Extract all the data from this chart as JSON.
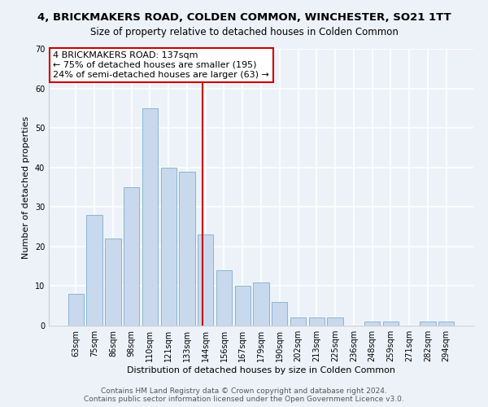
{
  "title": "4, BRICKMAKERS ROAD, COLDEN COMMON, WINCHESTER, SO21 1TT",
  "subtitle": "Size of property relative to detached houses in Colden Common",
  "xlabel": "Distribution of detached houses by size in Colden Common",
  "ylabel": "Number of detached properties",
  "categories": [
    "63sqm",
    "75sqm",
    "86sqm",
    "98sqm",
    "110sqm",
    "121sqm",
    "133sqm",
    "144sqm",
    "156sqm",
    "167sqm",
    "179sqm",
    "190sqm",
    "202sqm",
    "213sqm",
    "225sqm",
    "236sqm",
    "248sqm",
    "259sqm",
    "271sqm",
    "282sqm",
    "294sqm"
  ],
  "values": [
    8,
    28,
    22,
    35,
    55,
    40,
    39,
    23,
    14,
    10,
    11,
    6,
    2,
    2,
    2,
    0,
    1,
    1,
    0,
    1,
    1
  ],
  "bar_color": "#c8d9ed",
  "bar_edge_color": "#8ab4d4",
  "annotation_line0": "4 BRICKMAKERS ROAD: 137sqm",
  "annotation_line1": "← 75% of detached houses are smaller (195)",
  "annotation_line2": "24% of semi-detached houses are larger (63) →",
  "annotation_box_color": "#ffffff",
  "annotation_box_edge": "#cc0000",
  "vline_color": "#cc0000",
  "ylim": [
    0,
    70
  ],
  "yticks": [
    0,
    10,
    20,
    30,
    40,
    50,
    60,
    70
  ],
  "background_color": "#edf2f9",
  "grid_color": "#ffffff",
  "footer_line1": "Contains HM Land Registry data © Crown copyright and database right 2024.",
  "footer_line2": "Contains public sector information licensed under the Open Government Licence v3.0.",
  "title_fontsize": 9.5,
  "subtitle_fontsize": 8.5,
  "axis_label_fontsize": 8,
  "tick_fontsize": 7,
  "footer_fontsize": 6.5,
  "annotation_fontsize": 8
}
